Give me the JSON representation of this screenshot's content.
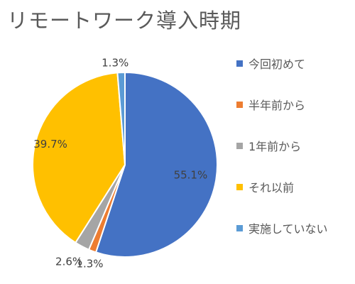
{
  "chart_data": {
    "type": "pie",
    "title": "リモートワーク導入時期",
    "categories": [
      "今回初めて",
      "半年前から",
      "1年前から",
      "それ以前",
      "実施していない"
    ],
    "values": [
      55.1,
      1.3,
      2.6,
      39.7,
      1.3
    ],
    "data_labels": [
      "55.1%",
      "1.3%",
      "2.6%",
      "39.7%",
      "1.3%"
    ],
    "colors": [
      "#4472C4",
      "#ED7D31",
      "#A5A5A5",
      "#FFC000",
      "#5B9BD5"
    ],
    "legend_position": "right"
  }
}
